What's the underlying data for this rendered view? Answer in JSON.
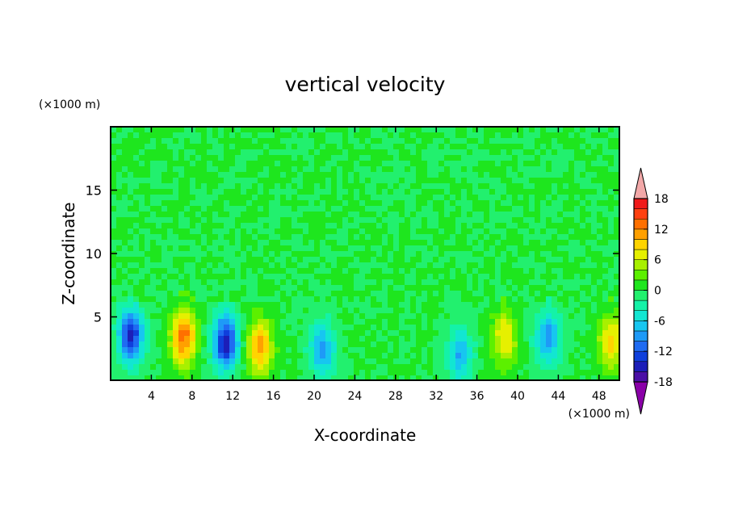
{
  "chart_data": {
    "type": "heatmap",
    "title": "vertical velocity",
    "xlabel": "X-coordinate",
    "ylabel": "Z-coordinate",
    "x_unit": "(×1000 m)",
    "y_unit": "(×1000 m)",
    "xlim": [
      0,
      50
    ],
    "ylim": [
      0,
      20
    ],
    "x_ticks": [
      4,
      8,
      12,
      16,
      20,
      24,
      28,
      32,
      36,
      40,
      44,
      48
    ],
    "y_ticks": [
      5,
      10,
      15
    ],
    "grid": false,
    "colorbar": {
      "levels": [
        -20,
        -18,
        -16,
        -14,
        -12,
        -10,
        -8,
        -6,
        -4,
        -2,
        0,
        2,
        4,
        6,
        8,
        10,
        12,
        14,
        16,
        18,
        20
      ],
      "tick_labels": [
        "18",
        "12",
        "6",
        "0",
        "-6",
        "-12",
        "-18"
      ],
      "tick_values": [
        18,
        12,
        6,
        0,
        -6,
        -12,
        -18
      ],
      "colors": [
        "#8a00a8",
        "#4b0fa6",
        "#1c1eb8",
        "#0f3fdc",
        "#1f6bf2",
        "#1e9af7",
        "#17c6f0",
        "#12e6d2",
        "#14f2a8",
        "#22f06e",
        "#1ee61e",
        "#5cf000",
        "#a8f000",
        "#e6f000",
        "#ffd400",
        "#ffa000",
        "#ff7000",
        "#ff4010",
        "#f01a1a",
        "#f2a8a8"
      ]
    },
    "features": [
      {
        "x": 2.0,
        "z": 3.5,
        "w": -14
      },
      {
        "x": 7.2,
        "z": 3.3,
        "w": 13
      },
      {
        "x": 11.3,
        "z": 3.0,
        "w": -15
      },
      {
        "x": 14.7,
        "z": 2.6,
        "w": 11
      },
      {
        "x": 20.8,
        "z": 2.4,
        "w": -9
      },
      {
        "x": 34.3,
        "z": 2.0,
        "w": -8
      },
      {
        "x": 38.7,
        "z": 3.3,
        "w": 8
      },
      {
        "x": 43.0,
        "z": 3.3,
        "w": -9
      },
      {
        "x": 49.2,
        "z": 3.0,
        "w": 9
      }
    ]
  }
}
